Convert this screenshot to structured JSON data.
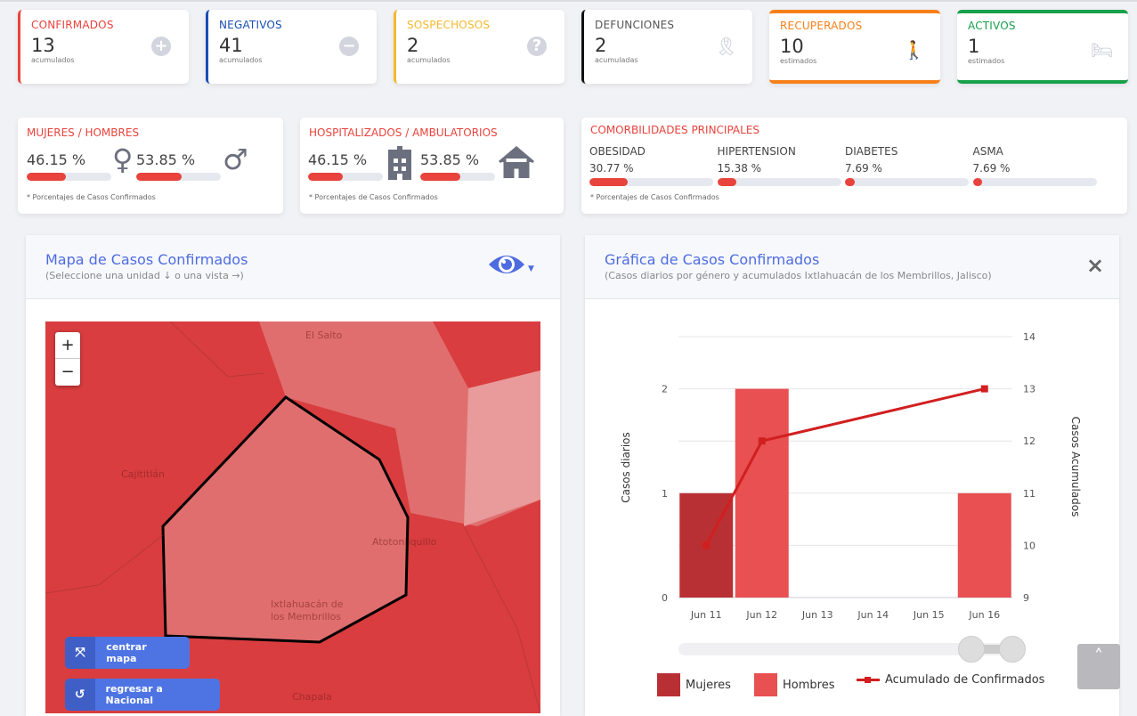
{
  "stats": [
    {
      "title": "CONFIRMADOS",
      "value": "13",
      "sub": "acumulados",
      "color": "#e8433c",
      "icon": "plus-circle-icon"
    },
    {
      "title": "NEGATIVOS",
      "value": "41",
      "sub": "acumulados",
      "color": "#1a4fb5",
      "icon": "minus-circle-icon"
    },
    {
      "title": "SOSPECHOSOS",
      "value": "2",
      "sub": "acumulados",
      "color": "#f5b82e",
      "icon": "question-circle-icon"
    },
    {
      "title": "DEFUNCIONES",
      "value": "2",
      "sub": "acumuladas",
      "color": "#111111",
      "icon": "ribbon-icon"
    },
    {
      "title": "RECUPERADOS",
      "value": "10",
      "sub": "estimados",
      "color": "#f7801a",
      "icon": "walking-icon"
    },
    {
      "title": "ACTIVOS",
      "value": "1",
      "sub": "estimados",
      "color": "#18a04a",
      "icon": "bed-icon"
    }
  ],
  "gender": {
    "title": "MUJERES / HOMBRES",
    "women_pct": "46.15 %",
    "men_pct": "53.85 %",
    "women_value": 46.15,
    "men_value": 53.85,
    "note": "* Porcentajes  de Casos Confirmados"
  },
  "hosp": {
    "title": "HOSPITALIZADOS / AMBULATORIOS",
    "hosp_pct": "46.15 %",
    "amb_pct": "53.85 %",
    "hosp_value": 46.15,
    "amb_value": 53.85,
    "note": "* Porcentajes  de Casos Confirmados"
  },
  "comorb": {
    "title": "COMORBILIDADES PRINCIPALES",
    "note": "* Porcentajes  de Casos Confirmados",
    "items": [
      {
        "name": "OBESIDAD",
        "pct": "30.77 %",
        "value": 30.77
      },
      {
        "name": "HIPERTENSION",
        "pct": "15.38 %",
        "value": 15.38
      },
      {
        "name": "DIABETES",
        "pct": "7.69 %",
        "value": 7.69
      },
      {
        "name": "ASMA",
        "pct": "7.69 %",
        "value": 7.69
      }
    ]
  },
  "map": {
    "title": "Mapa de Casos Confirmados",
    "subtitle": "(Seleccione una unidad ↓ o una vista →)",
    "zoom_in": "+",
    "zoom_out": "−",
    "labels": [
      "El Salto",
      "Cajititlán",
      "Atotonilquillo",
      "Ixtlahuacán de",
      "los Membrillos",
      "Chapala"
    ],
    "center_btn": "centrar mapa",
    "national_btn": "regresar a Nacional"
  },
  "chart_panel": {
    "title": "Gráfica de Casos Confirmados",
    "subtitle": "(Casos diarios por género y acumulados Ixtlahuacán de los Membrillos, Jalisco)",
    "close": "×"
  },
  "chart_data": {
    "type": "bar",
    "categories": [
      "Jun 11",
      "Jun 12",
      "Jun 13",
      "Jun 14",
      "Jun 15",
      "Jun 16"
    ],
    "series": [
      {
        "name": "Mujeres",
        "type": "bar",
        "axis": "left",
        "color": "#b83034",
        "values": [
          1,
          0,
          0,
          0,
          0,
          0
        ]
      },
      {
        "name": "Hombres",
        "type": "bar",
        "axis": "left",
        "color": "#e85052",
        "values": [
          0,
          2,
          0,
          0,
          0,
          1
        ]
      },
      {
        "name": "Acumulado de Confirmados",
        "type": "line",
        "axis": "right",
        "color": "#d11f1f",
        "values": [
          10,
          12,
          null,
          null,
          null,
          13
        ]
      }
    ],
    "ylabel": "Casos diarios",
    "y2label": "Casos Acumulados",
    "yticks": [
      0,
      1,
      2
    ],
    "ylim": [
      0,
      2.5
    ],
    "y2ticks": [
      9,
      10,
      11,
      12,
      13,
      14
    ],
    "y2lim": [
      9,
      14
    ],
    "grid": true,
    "legend": "bottom"
  },
  "scroll_top": "˄"
}
